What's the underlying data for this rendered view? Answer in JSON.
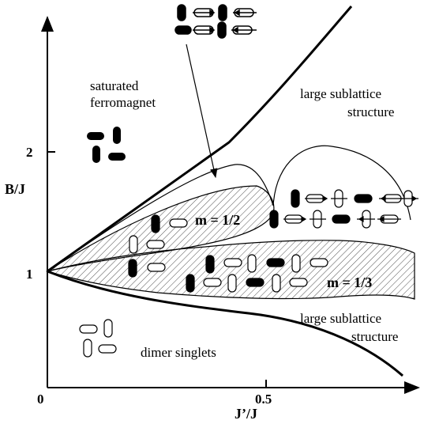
{
  "axes": {
    "x_label": "J’/J",
    "y_label": "B/J",
    "x_ticks": [
      "0",
      "0.5"
    ],
    "y_ticks": [
      "1",
      "2"
    ]
  },
  "regions": {
    "saturated": [
      "saturated",
      "ferromagnet"
    ],
    "large_upper": [
      "large sublattice",
      "structure"
    ],
    "m_half": "m = 1/2",
    "m_third": "m = 1/3",
    "large_lower": [
      "large sublattice",
      "structure"
    ],
    "dimer": "dimer  singlets"
  },
  "chart_data": {
    "type": "diagram",
    "title": "",
    "xlabel": "J’/J",
    "ylabel": "B/J",
    "xlim": [
      0,
      0.85
    ],
    "ylim": [
      0,
      3
    ],
    "phases": [
      {
        "name": "saturated ferromagnet"
      },
      {
        "name": "large sublattice structure (upper)"
      },
      {
        "name": "m = 1/2",
        "hatched": true
      },
      {
        "name": "m = 1/3",
        "hatched": true
      },
      {
        "name": "large sublattice structure (lower)"
      },
      {
        "name": "dimer singlets"
      }
    ]
  },
  "colors": {
    "line": "#000000",
    "hatch": "#444444",
    "background": "#ffffff"
  }
}
